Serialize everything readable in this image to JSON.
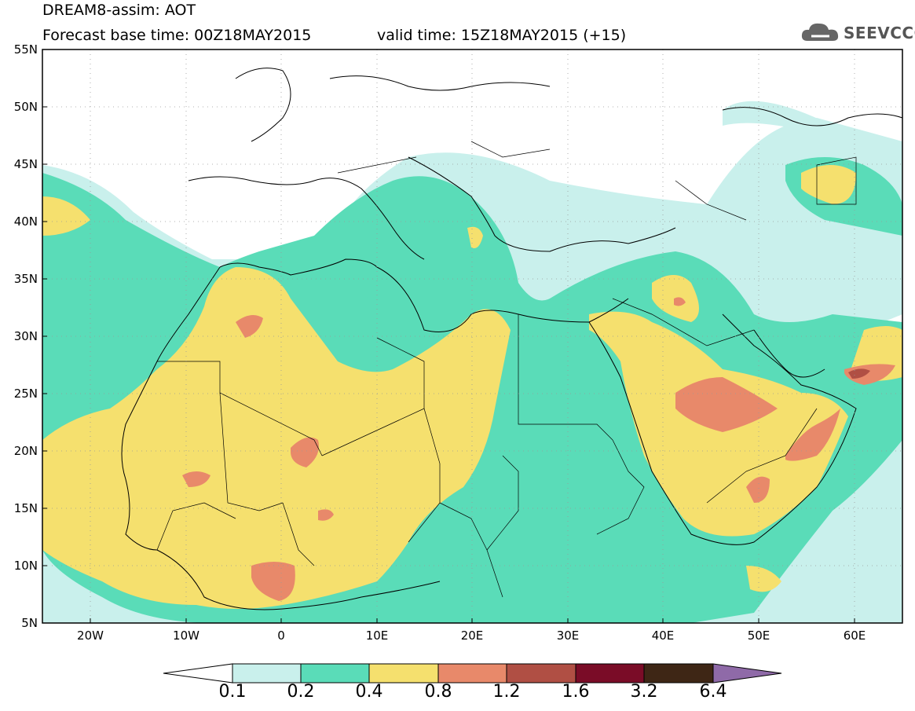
{
  "header": {
    "title": "DREAM8-assim: AOT",
    "base_time": "Forecast base time: 00Z18MAY2015",
    "valid_time": "valid time: 15Z18MAY2015 (+15)",
    "logo_text": "SEEVCCC"
  },
  "axes": {
    "lat_labels": [
      "55N",
      "50N",
      "45N",
      "40N",
      "35N",
      "30N",
      "25N",
      "20N",
      "15N",
      "10N",
      "5N"
    ],
    "lon_labels": [
      "20W",
      "10W",
      "0",
      "10E",
      "20E",
      "30E",
      "40E",
      "50E",
      "60E"
    ]
  },
  "colorbar": {
    "labels": [
      "0.1",
      "0.2",
      "0.4",
      "0.8",
      "1.2",
      "1.6",
      "3.2",
      "6.4"
    ],
    "colors": [
      "#ffffff",
      "#c9f0ec",
      "#5adcb8",
      "#f5e06e",
      "#e8896a",
      "#b04f44",
      "#7a0c27",
      "#3e2615",
      "#8f6aa8"
    ]
  },
  "map": {
    "extent": {
      "lon_min": -25,
      "lon_max": 65,
      "lat_min": 5,
      "lat_max": 55
    },
    "colors": {
      "c1": "#c9f0ec",
      "c2": "#5adcb8",
      "c3": "#f5e06e",
      "c4": "#e8896a",
      "c5": "#b04f44"
    }
  }
}
